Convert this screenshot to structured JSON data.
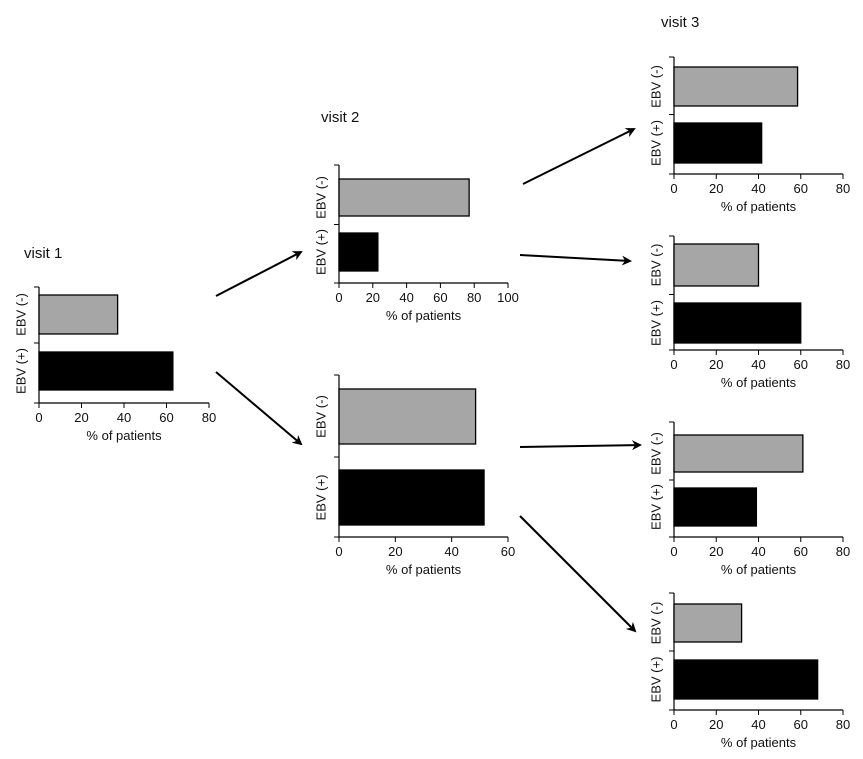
{
  "visit_labels": [
    "visit 1",
    "visit 2",
    "visit 3"
  ],
  "colors": {
    "ebv_negative": "#a6a6a6",
    "ebv_positive": "#000000"
  },
  "chart_data": [
    {
      "id": "visit1",
      "type": "bar",
      "orientation": "horizontal",
      "categories": [
        "EBV (-)",
        "EBV (+)"
      ],
      "values": [
        37,
        63
      ],
      "xlim": [
        0,
        80
      ],
      "xticks": [
        0,
        20,
        40,
        60,
        80
      ],
      "xlabel": "% of patients"
    },
    {
      "id": "visit2-top",
      "type": "bar",
      "orientation": "horizontal",
      "categories": [
        "EBV (-)",
        "EBV (+)"
      ],
      "values": [
        77,
        23
      ],
      "xlim": [
        0,
        100
      ],
      "xticks": [
        0,
        20,
        40,
        60,
        80,
        100
      ],
      "xlabel": "% of patients"
    },
    {
      "id": "visit2-bottom",
      "type": "bar",
      "orientation": "horizontal",
      "categories": [
        "EBV (-)",
        "EBV (+)"
      ],
      "values": [
        48.5,
        51.5
      ],
      "xlim": [
        0,
        60
      ],
      "xticks": [
        0,
        20,
        40,
        60
      ],
      "xlabel": "% of patients"
    },
    {
      "id": "visit3-a",
      "type": "bar",
      "orientation": "horizontal",
      "categories": [
        "EBV (-)",
        "EBV (+)"
      ],
      "values": [
        58.5,
        41.5
      ],
      "xlim": [
        0,
        80
      ],
      "xticks": [
        0,
        20,
        40,
        60,
        80
      ],
      "xlabel": "% of patients"
    },
    {
      "id": "visit3-b",
      "type": "bar",
      "orientation": "horizontal",
      "categories": [
        "EBV (-)",
        "EBV (+)"
      ],
      "values": [
        40,
        60
      ],
      "xlim": [
        0,
        80
      ],
      "xticks": [
        0,
        20,
        40,
        60,
        80
      ],
      "xlabel": "% of patients"
    },
    {
      "id": "visit3-c",
      "type": "bar",
      "orientation": "horizontal",
      "categories": [
        "EBV (-)",
        "EBV (+)"
      ],
      "values": [
        61,
        39
      ],
      "xlim": [
        0,
        80
      ],
      "xticks": [
        0,
        20,
        40,
        60,
        80
      ],
      "xlabel": "% of patients"
    },
    {
      "id": "visit3-d",
      "type": "bar",
      "orientation": "horizontal",
      "categories": [
        "EBV (-)",
        "EBV (+)"
      ],
      "values": [
        32,
        68
      ],
      "xlim": [
        0,
        80
      ],
      "xticks": [
        0,
        20,
        40,
        60,
        80
      ],
      "xlabel": "% of patients"
    }
  ]
}
